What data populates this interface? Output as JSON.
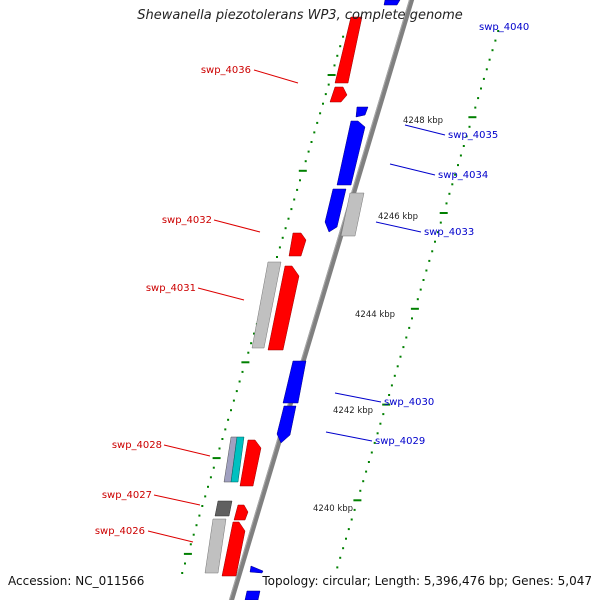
{
  "title": "Shewanella piezotolerans WP3, complete genome",
  "footer": {
    "accession": "Accession: NC_011566",
    "summary": "Topology: circular; Length: 5,396,476 bp; Genes: 5,047"
  },
  "colors": {
    "forward": "#ff0000",
    "reverse": "#0000ff",
    "other": "#c0c0c0",
    "dark": "#606060",
    "cyan": "#00c0c0",
    "backbone": "#808080",
    "tick": "#008000",
    "label_forward": "#cc0000",
    "label_reverse": "#0000cc"
  },
  "scale_labels": [
    "4248 kbp",
    "4246 kbp",
    "4244 kbp",
    "4242 kbp",
    "4240 kbp"
  ],
  "gene_labels": {
    "left": [
      "swp_4036",
      "swp_4032",
      "swp_4031",
      "swp_4028",
      "swp_4027",
      "swp_4026"
    ],
    "right": [
      "swp_4040",
      "swp_4035",
      "swp_4034",
      "swp_4033",
      "swp_4030",
      "swp_4029"
    ]
  }
}
